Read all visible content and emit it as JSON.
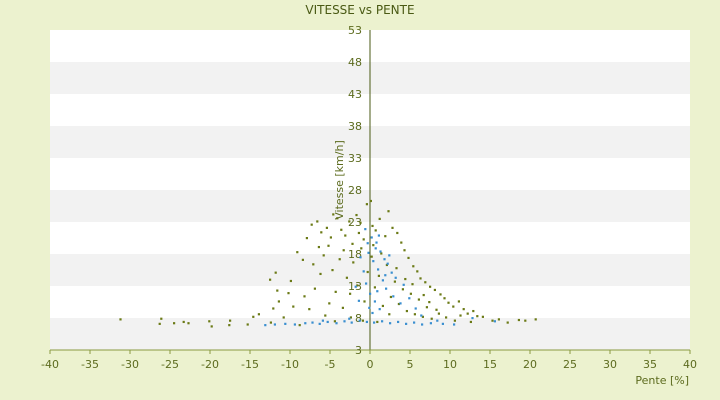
{
  "chart_data": {
    "type": "scatter",
    "title": "VITESSE vs PENTE",
    "xlabel": "Pente [%]",
    "ylabel": "Vitesse [km/h]",
    "xlim": [
      -40,
      40
    ],
    "ylim": [
      3,
      53
    ],
    "x_ticks": [
      -40,
      -35,
      -30,
      -25,
      -20,
      -15,
      -10,
      -5,
      0,
      5,
      10,
      15,
      20,
      25,
      30,
      35,
      40
    ],
    "y_ticks": [
      3,
      8,
      13,
      18,
      23,
      28,
      33,
      38,
      43,
      48,
      53
    ],
    "grid": "horizontal alternating bands",
    "legend": "none",
    "series": [
      {
        "color": "#6b7a16",
        "points": [
          [
            -31.2,
            7.8
          ],
          [
            -26.1,
            7.9
          ],
          [
            -26.3,
            7.1
          ],
          [
            -24.5,
            7.2
          ],
          [
            -23.3,
            7.4
          ],
          [
            -22.7,
            7.2
          ],
          [
            -20.1,
            7.5
          ],
          [
            -19.8,
            6.7
          ],
          [
            -17.5,
            7.6
          ],
          [
            -17.6,
            6.9
          ],
          [
            -15.3,
            7.0
          ],
          [
            -14.6,
            8.2
          ],
          [
            -13.9,
            8.6
          ],
          [
            -12.4,
            7.3
          ],
          [
            -12.1,
            9.5
          ],
          [
            -11.4,
            10.6
          ],
          [
            -10.8,
            8.1
          ],
          [
            -10.2,
            11.9
          ],
          [
            -11.8,
            15.1
          ],
          [
            -12.5,
            14.0
          ],
          [
            -11.6,
            12.3
          ],
          [
            -9.9,
            13.8
          ],
          [
            -9.1,
            18.3
          ],
          [
            -8.4,
            17.1
          ],
          [
            -7.9,
            20.5
          ],
          [
            -7.3,
            22.6
          ],
          [
            -6.6,
            23.1
          ],
          [
            -6.1,
            21.4
          ],
          [
            -5.4,
            22.1
          ],
          [
            -5.2,
            19.3
          ],
          [
            -4.6,
            24.2
          ],
          [
            -4.1,
            23.6
          ],
          [
            -3.6,
            21.8
          ],
          [
            -3.1,
            20.9
          ],
          [
            -2.6,
            23.1
          ],
          [
            -2.2,
            19.6
          ],
          [
            -1.7,
            24.1
          ],
          [
            -1.2,
            22.9
          ],
          [
            -0.8,
            20.3
          ],
          [
            -0.4,
            25.8
          ],
          [
            0.1,
            26.3
          ],
          [
            0.3,
            22.4
          ],
          [
            0.7,
            21.7
          ],
          [
            1.2,
            23.5
          ],
          [
            1.9,
            20.8
          ],
          [
            2.3,
            24.7
          ],
          [
            2.8,
            22.1
          ],
          [
            3.4,
            21.3
          ],
          [
            3.9,
            19.8
          ],
          [
            4.3,
            18.6
          ],
          [
            4.8,
            17.4
          ],
          [
            5.4,
            16.1
          ],
          [
            5.9,
            15.3
          ],
          [
            6.3,
            14.2
          ],
          [
            6.9,
            13.6
          ],
          [
            7.5,
            12.9
          ],
          [
            8.1,
            12.4
          ],
          [
            8.8,
            11.7
          ],
          [
            9.3,
            11.1
          ],
          [
            9.8,
            10.4
          ],
          [
            10.4,
            9.8
          ],
          [
            11.1,
            10.6
          ],
          [
            11.7,
            9.4
          ],
          [
            12.2,
            8.7
          ],
          [
            12.9,
            9.1
          ],
          [
            13.4,
            8.3
          ],
          [
            14.1,
            8.2
          ],
          [
            15.3,
            7.6
          ],
          [
            16.1,
            7.8
          ],
          [
            17.2,
            7.3
          ],
          [
            18.6,
            7.7
          ],
          [
            19.4,
            7.6
          ],
          [
            20.7,
            7.8
          ],
          [
            -8.8,
            6.9
          ],
          [
            -7.6,
            9.4
          ],
          [
            -6.9,
            12.6
          ],
          [
            -6.2,
            14.9
          ],
          [
            -5.8,
            17.8
          ],
          [
            -5.1,
            10.3
          ],
          [
            -4.7,
            15.5
          ],
          [
            -4.3,
            12.1
          ],
          [
            -3.8,
            17.2
          ],
          [
            -3.4,
            9.6
          ],
          [
            -2.9,
            14.3
          ],
          [
            -2.5,
            11.8
          ],
          [
            -2.1,
            16.7
          ],
          [
            -1.6,
            13.1
          ],
          [
            -1.1,
            18.9
          ],
          [
            -0.7,
            10.6
          ],
          [
            -0.3,
            15.2
          ],
          [
            0.2,
            17.6
          ],
          [
            0.6,
            12.8
          ],
          [
            1.1,
            14.6
          ],
          [
            1.6,
            9.9
          ],
          [
            2.1,
            16.3
          ],
          [
            2.6,
            11.3
          ],
          [
            3.1,
            13.7
          ],
          [
            3.6,
            10.2
          ],
          [
            4.1,
            12.5
          ],
          [
            4.6,
            9.1
          ],
          [
            5.1,
            11.8
          ],
          [
            5.6,
            8.6
          ],
          [
            6.1,
            10.9
          ],
          [
            6.6,
            8.2
          ],
          [
            7.1,
            9.7
          ],
          [
            7.7,
            7.9
          ],
          [
            8.3,
            9.3
          ],
          [
            -9.6,
            9.8
          ],
          [
            -8.2,
            11.4
          ],
          [
            -7.1,
            16.4
          ],
          [
            -6.4,
            19.1
          ],
          [
            -5.6,
            8.4
          ],
          [
            -4.9,
            20.6
          ],
          [
            -4.4,
            7.5
          ],
          [
            -3.3,
            18.6
          ],
          [
            -2.4,
            8.1
          ],
          [
            -1.4,
            21.3
          ],
          [
            -0.9,
            7.6
          ],
          [
            0.4,
            19.4
          ],
          [
            0.9,
            7.4
          ],
          [
            1.4,
            18.1
          ],
          [
            2.4,
            8.6
          ],
          [
            3.3,
            15.8
          ],
          [
            4.4,
            14.1
          ],
          [
            5.3,
            13.3
          ],
          [
            6.7,
            11.6
          ],
          [
            7.4,
            10.5
          ],
          [
            8.6,
            8.7
          ],
          [
            9.5,
            8.1
          ],
          [
            10.6,
            7.6
          ],
          [
            11.3,
            8.4
          ],
          [
            12.6,
            7.4
          ]
        ]
      },
      {
        "color": "#3a8fd0",
        "points": [
          [
            -13.1,
            6.9
          ],
          [
            -11.9,
            7.0
          ],
          [
            -10.6,
            7.1
          ],
          [
            -9.4,
            7.0
          ],
          [
            -8.1,
            7.2
          ],
          [
            -7.2,
            7.3
          ],
          [
            -6.3,
            7.1
          ],
          [
            -5.3,
            7.4
          ],
          [
            -4.2,
            7.2
          ],
          [
            -3.2,
            7.5
          ],
          [
            -2.3,
            7.3
          ],
          [
            -1.3,
            7.6
          ],
          [
            -0.4,
            7.4
          ],
          [
            0.5,
            7.3
          ],
          [
            1.5,
            7.5
          ],
          [
            2.5,
            7.2
          ],
          [
            3.5,
            7.4
          ],
          [
            4.5,
            7.1
          ],
          [
            5.5,
            7.3
          ],
          [
            6.5,
            7.0
          ],
          [
            7.6,
            7.2
          ],
          [
            9.1,
            7.1
          ],
          [
            10.5,
            7.0
          ],
          [
            -0.6,
            21.9
          ],
          [
            0.2,
            20.6
          ],
          [
            0.8,
            19.8
          ],
          [
            1.3,
            18.4
          ],
          [
            1.8,
            17.2
          ],
          [
            2.2,
            16.5
          ],
          [
            2.7,
            15.1
          ],
          [
            3.2,
            14.3
          ],
          [
            -0.2,
            18.2
          ],
          [
            0.4,
            16.9
          ],
          [
            1.0,
            15.6
          ],
          [
            1.6,
            13.9
          ],
          [
            2.0,
            12.6
          ],
          [
            2.9,
            11.4
          ],
          [
            3.8,
            10.3
          ],
          [
            -1.2,
            17.5
          ],
          [
            -0.8,
            15.3
          ],
          [
            -0.5,
            13.4
          ],
          [
            0.0,
            11.8
          ],
          [
            0.6,
            10.6
          ],
          [
            1.2,
            9.4
          ],
          [
            -1.8,
            12.9
          ],
          [
            -1.4,
            10.7
          ],
          [
            0.3,
            8.8
          ],
          [
            -0.1,
            9.6
          ],
          [
            0.9,
            12.2
          ],
          [
            1.9,
            14.7
          ],
          [
            2.4,
            17.8
          ],
          [
            0.7,
            18.9
          ],
          [
            -0.3,
            19.7
          ],
          [
            1.1,
            20.9
          ],
          [
            4.2,
            13.2
          ],
          [
            4.9,
            11.1
          ],
          [
            5.7,
            9.5
          ],
          [
            6.4,
            8.4
          ],
          [
            -2.6,
            7.9
          ],
          [
            -5.9,
            7.6
          ],
          [
            8.4,
            7.6
          ],
          [
            12.8,
            8.0
          ],
          [
            15.6,
            7.5
          ]
        ]
      }
    ]
  }
}
